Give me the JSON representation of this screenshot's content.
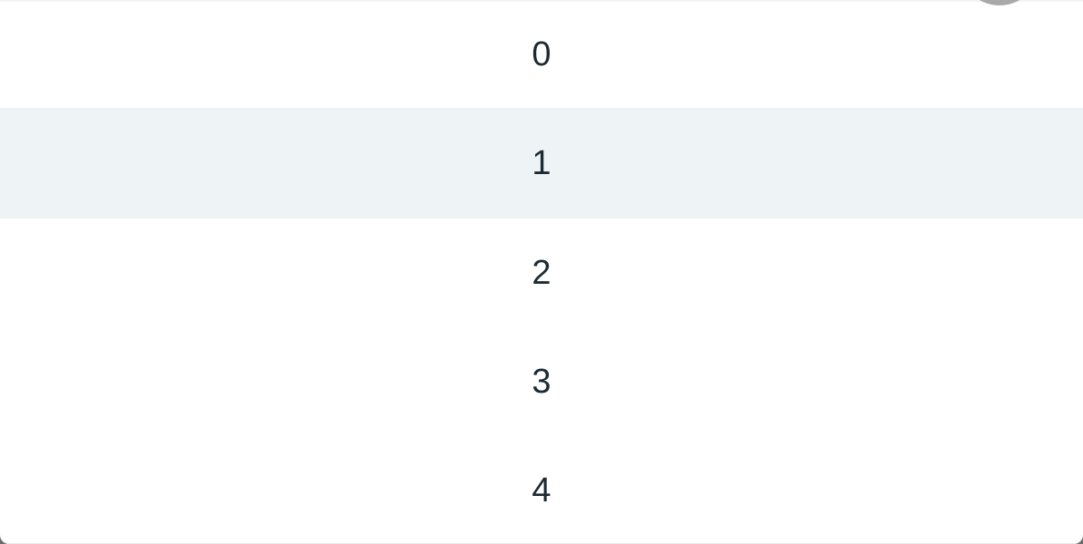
{
  "picker": {
    "options": [
      {
        "label": "0"
      },
      {
        "label": "1",
        "highlighted": true
      },
      {
        "label": "2"
      },
      {
        "label": "3"
      },
      {
        "label": "4"
      }
    ],
    "colors": {
      "background": "#ffffff",
      "highlight": "#eef3f6",
      "text": "#1c2a33"
    }
  }
}
